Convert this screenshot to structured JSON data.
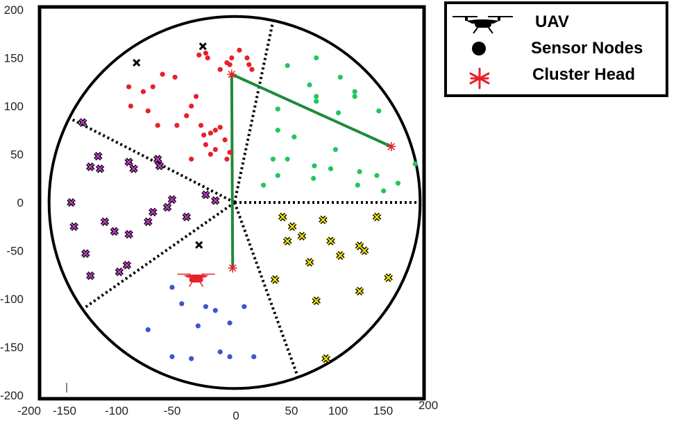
{
  "legend": {
    "uav_label": "UAV",
    "sensor_label": "Sensor Nodes",
    "ch_label": "Cluster Head",
    "icons": [
      "drone-icon",
      "black-dot-icon",
      "red-asterisk-icon"
    ]
  },
  "colors": {
    "red": "#e8202a",
    "green": "#22c55e",
    "blue": "#3b55d0",
    "yellow": "#f2e600",
    "purple": "#b83fc0",
    "path": "#1f8a3a",
    "black": "#000000"
  },
  "chart_data": {
    "type": "scatter",
    "xlim": [
      -200,
      200
    ],
    "ylim": [
      -200,
      200
    ],
    "xticks": [
      -200,
      -150,
      -100,
      -50,
      0,
      50,
      100,
      150,
      200
    ],
    "yticks": [
      200,
      150,
      100,
      50,
      0,
      -50,
      -100,
      -150,
      -200
    ],
    "circle": {
      "center": [
        0,
        0
      ],
      "radius": 193
    },
    "sector_boundaries_deg": [
      -70,
      0,
      78,
      153,
      215
    ],
    "series": [
      {
        "color": "red",
        "marker": "dot",
        "points": [
          [
            -37,
            153
          ],
          [
            -30,
            155
          ],
          [
            -28,
            150
          ],
          [
            -15,
            138
          ],
          [
            -8,
            145
          ],
          [
            -5,
            143
          ],
          [
            -3,
            150
          ],
          [
            5,
            158
          ],
          [
            13,
            150
          ],
          [
            15,
            143
          ],
          [
            18,
            138
          ],
          [
            -62,
            130
          ],
          [
            -75,
            133
          ],
          [
            -85,
            120
          ],
          [
            -95,
            115
          ],
          [
            -110,
            120
          ],
          [
            -108,
            100
          ],
          [
            -90,
            95
          ],
          [
            -80,
            80
          ],
          [
            -60,
            80
          ],
          [
            -50,
            90
          ],
          [
            -45,
            100
          ],
          [
            -40,
            110
          ],
          [
            -35,
            80
          ],
          [
            -32,
            70
          ],
          [
            -25,
            72
          ],
          [
            -20,
            75
          ],
          [
            -15,
            78
          ],
          [
            -30,
            60
          ],
          [
            -25,
            50
          ],
          [
            -20,
            55
          ],
          [
            -10,
            65
          ],
          [
            -5,
            52
          ],
          [
            -8,
            45
          ],
          [
            -45,
            45
          ]
        ]
      },
      {
        "color": "black",
        "marker": "x",
        "points": [
          [
            -102,
            145
          ],
          [
            -33,
            162
          ],
          [
            -37,
            -44
          ]
        ]
      },
      {
        "color": "green",
        "marker": "dot",
        "points": [
          [
            55,
            142
          ],
          [
            85,
            150
          ],
          [
            110,
            130
          ],
          [
            78,
            122
          ],
          [
            85,
            110
          ],
          [
            85,
            105
          ],
          [
            125,
            115
          ],
          [
            125,
            110
          ],
          [
            150,
            95
          ],
          [
            108,
            93
          ],
          [
            45,
            97
          ],
          [
            45,
            75
          ],
          [
            62,
            68
          ],
          [
            105,
            55
          ],
          [
            40,
            45
          ],
          [
            55,
            45
          ],
          [
            83,
            38
          ],
          [
            100,
            35
          ],
          [
            130,
            32
          ],
          [
            148,
            28
          ],
          [
            170,
            20
          ],
          [
            188,
            40
          ],
          [
            45,
            28
          ],
          [
            30,
            18
          ],
          [
            82,
            25
          ],
          [
            128,
            18
          ],
          [
            155,
            12
          ]
        ]
      },
      {
        "color": "purple",
        "marker": "x",
        "points": [
          [
            -158,
            83
          ],
          [
            -150,
            37
          ],
          [
            -142,
            48
          ],
          [
            -140,
            35
          ],
          [
            -110,
            42
          ],
          [
            -80,
            45
          ],
          [
            -78,
            38
          ],
          [
            -105,
            35
          ],
          [
            -170,
            0
          ],
          [
            -167,
            -25
          ],
          [
            -135,
            -20
          ],
          [
            -125,
            -30
          ],
          [
            -110,
            -33
          ],
          [
            -90,
            -20
          ],
          [
            -85,
            -10
          ],
          [
            -70,
            -5
          ],
          [
            -65,
            3
          ],
          [
            -50,
            -15
          ],
          [
            -30,
            8
          ],
          [
            -20,
            2
          ],
          [
            -155,
            -53
          ],
          [
            -150,
            -76
          ],
          [
            -120,
            -72
          ],
          [
            -112,
            -65
          ]
        ]
      },
      {
        "color": "yellow",
        "marker": "x",
        "points": [
          [
            50,
            -15
          ],
          [
            60,
            -25
          ],
          [
            70,
            -35
          ],
          [
            92,
            -18
          ],
          [
            148,
            -15
          ],
          [
            55,
            -40
          ],
          [
            100,
            -40
          ],
          [
            130,
            -45
          ],
          [
            135,
            -50
          ],
          [
            78,
            -62
          ],
          [
            110,
            -55
          ],
          [
            160,
            -78
          ],
          [
            42,
            -80
          ],
          [
            85,
            -102
          ],
          [
            130,
            -92
          ],
          [
            95,
            -162
          ]
        ]
      },
      {
        "color": "blue",
        "marker": "dot",
        "points": [
          [
            -65,
            -88
          ],
          [
            -55,
            -105
          ],
          [
            -30,
            -108
          ],
          [
            -20,
            -112
          ],
          [
            10,
            -108
          ],
          [
            -38,
            -128
          ],
          [
            -5,
            -125
          ],
          [
            -90,
            -132
          ],
          [
            -65,
            -160
          ],
          [
            -45,
            -162
          ],
          [
            -15,
            -155
          ],
          [
            -5,
            -160
          ],
          [
            20,
            -160
          ]
        ]
      }
    ],
    "cluster_heads": [
      [
        -3,
        133
      ],
      [
        163,
        58
      ],
      [
        -2,
        -68
      ]
    ],
    "uav_path": [
      [
        -2,
        -68
      ],
      [
        -3,
        133
      ],
      [
        163,
        58
      ]
    ],
    "uav_position": [
      -40,
      -78
    ]
  }
}
